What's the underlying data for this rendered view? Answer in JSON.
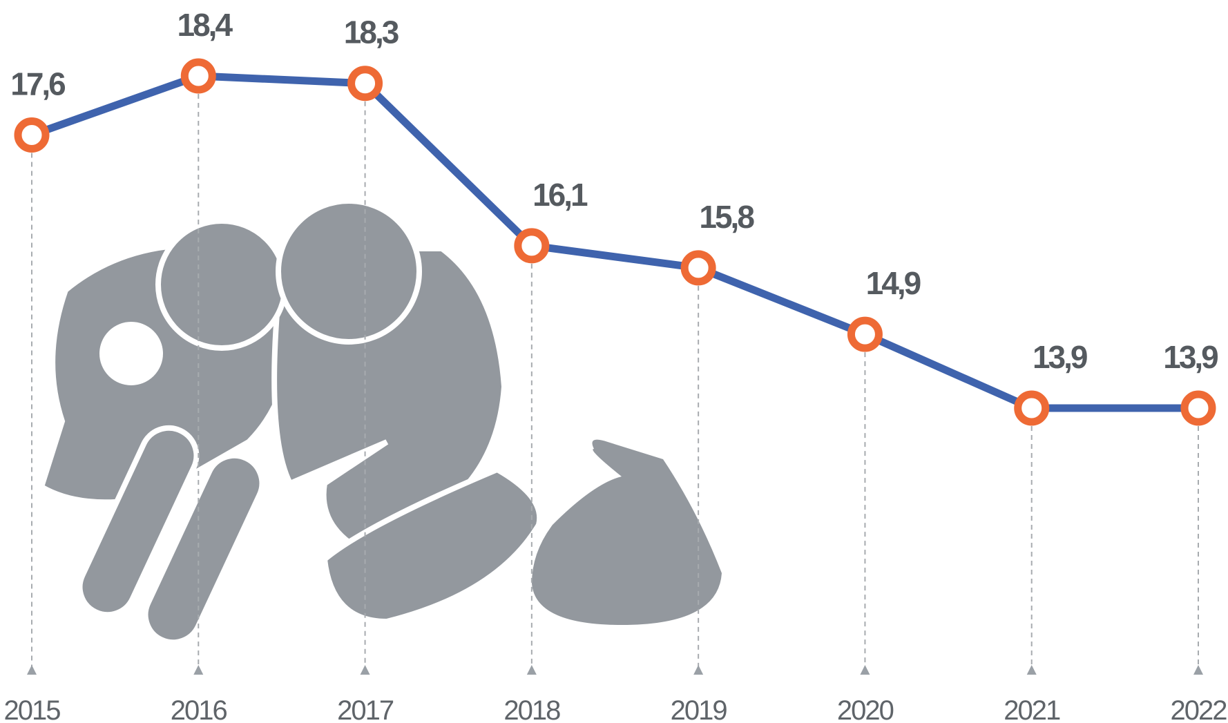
{
  "chart_data": {
    "type": "line",
    "categories": [
      "2015",
      "2016",
      "2017",
      "2018",
      "2019",
      "2020",
      "2021",
      "2022"
    ],
    "values": [
      17.6,
      18.4,
      18.3,
      16.1,
      15.8,
      14.9,
      13.9,
      13.9
    ],
    "value_labels": [
      "17,6",
      "18,4",
      "18,3",
      "16,1",
      "15,8",
      "14,9",
      "13,9",
      "13,9"
    ],
    "color": "#3f63ad",
    "marker_color": "#ee6a35"
  }
}
